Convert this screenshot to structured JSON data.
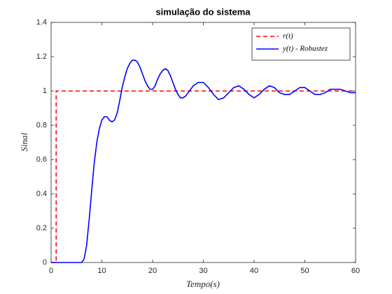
{
  "chart_data": {
    "type": "line",
    "title": "simulação do sistema",
    "xlabel": "Tempo(s)",
    "ylabel": "Sinal",
    "xlim": [
      0,
      60
    ],
    "xticks": [
      0,
      10,
      20,
      30,
      40,
      50,
      60
    ],
    "ylim": [
      0,
      1.4
    ],
    "yticks": [
      0,
      0.2,
      0.4,
      0.6,
      0.8,
      1,
      1.2,
      1.4
    ],
    "legend": "upper right",
    "series": [
      {
        "name": "r(t)",
        "color": "#ff0000",
        "style": "dashed",
        "x": [
          0,
          1,
          1,
          60
        ],
        "values": [
          0,
          0,
          1,
          1
        ]
      },
      {
        "name": "y(t) - Robustez",
        "color": "#0000ff",
        "style": "solid",
        "x": [
          0,
          6,
          6.5,
          7,
          7.5,
          8,
          8.5,
          9,
          9.5,
          10,
          10.5,
          11,
          11.5,
          12,
          12.5,
          13,
          13.5,
          14,
          14.5,
          15,
          15.5,
          16,
          16.5,
          17,
          17.5,
          18,
          18.5,
          19,
          19.5,
          20,
          20.5,
          21,
          21.5,
          22,
          22.5,
          23,
          23.5,
          24,
          24.5,
          25,
          25.5,
          26,
          26.5,
          27,
          28,
          29,
          30,
          31,
          32,
          33,
          34,
          35,
          36,
          37,
          38,
          39,
          40,
          41,
          42,
          43,
          44,
          45,
          46,
          47,
          48,
          49,
          50,
          51,
          52,
          53,
          54,
          55,
          56,
          57,
          58,
          59,
          60
        ],
        "values": [
          0,
          0,
          0.02,
          0.1,
          0.25,
          0.42,
          0.58,
          0.7,
          0.78,
          0.83,
          0.85,
          0.85,
          0.83,
          0.82,
          0.83,
          0.87,
          0.94,
          1.02,
          1.08,
          1.13,
          1.16,
          1.18,
          1.18,
          1.17,
          1.14,
          1.1,
          1.06,
          1.03,
          1.01,
          1.01,
          1.03,
          1.07,
          1.1,
          1.12,
          1.13,
          1.12,
          1.09,
          1.05,
          1.01,
          0.98,
          0.96,
          0.96,
          0.97,
          0.99,
          1.03,
          1.05,
          1.05,
          1.02,
          0.98,
          0.95,
          0.96,
          0.99,
          1.02,
          1.03,
          1.01,
          0.98,
          0.96,
          0.98,
          1.01,
          1.03,
          1.02,
          0.99,
          0.98,
          0.98,
          1,
          1.02,
          1.02,
          1,
          0.98,
          0.98,
          0.99,
          1.01,
          1.01,
          1.01,
          1,
          0.99,
          0.99
        ]
      }
    ]
  }
}
